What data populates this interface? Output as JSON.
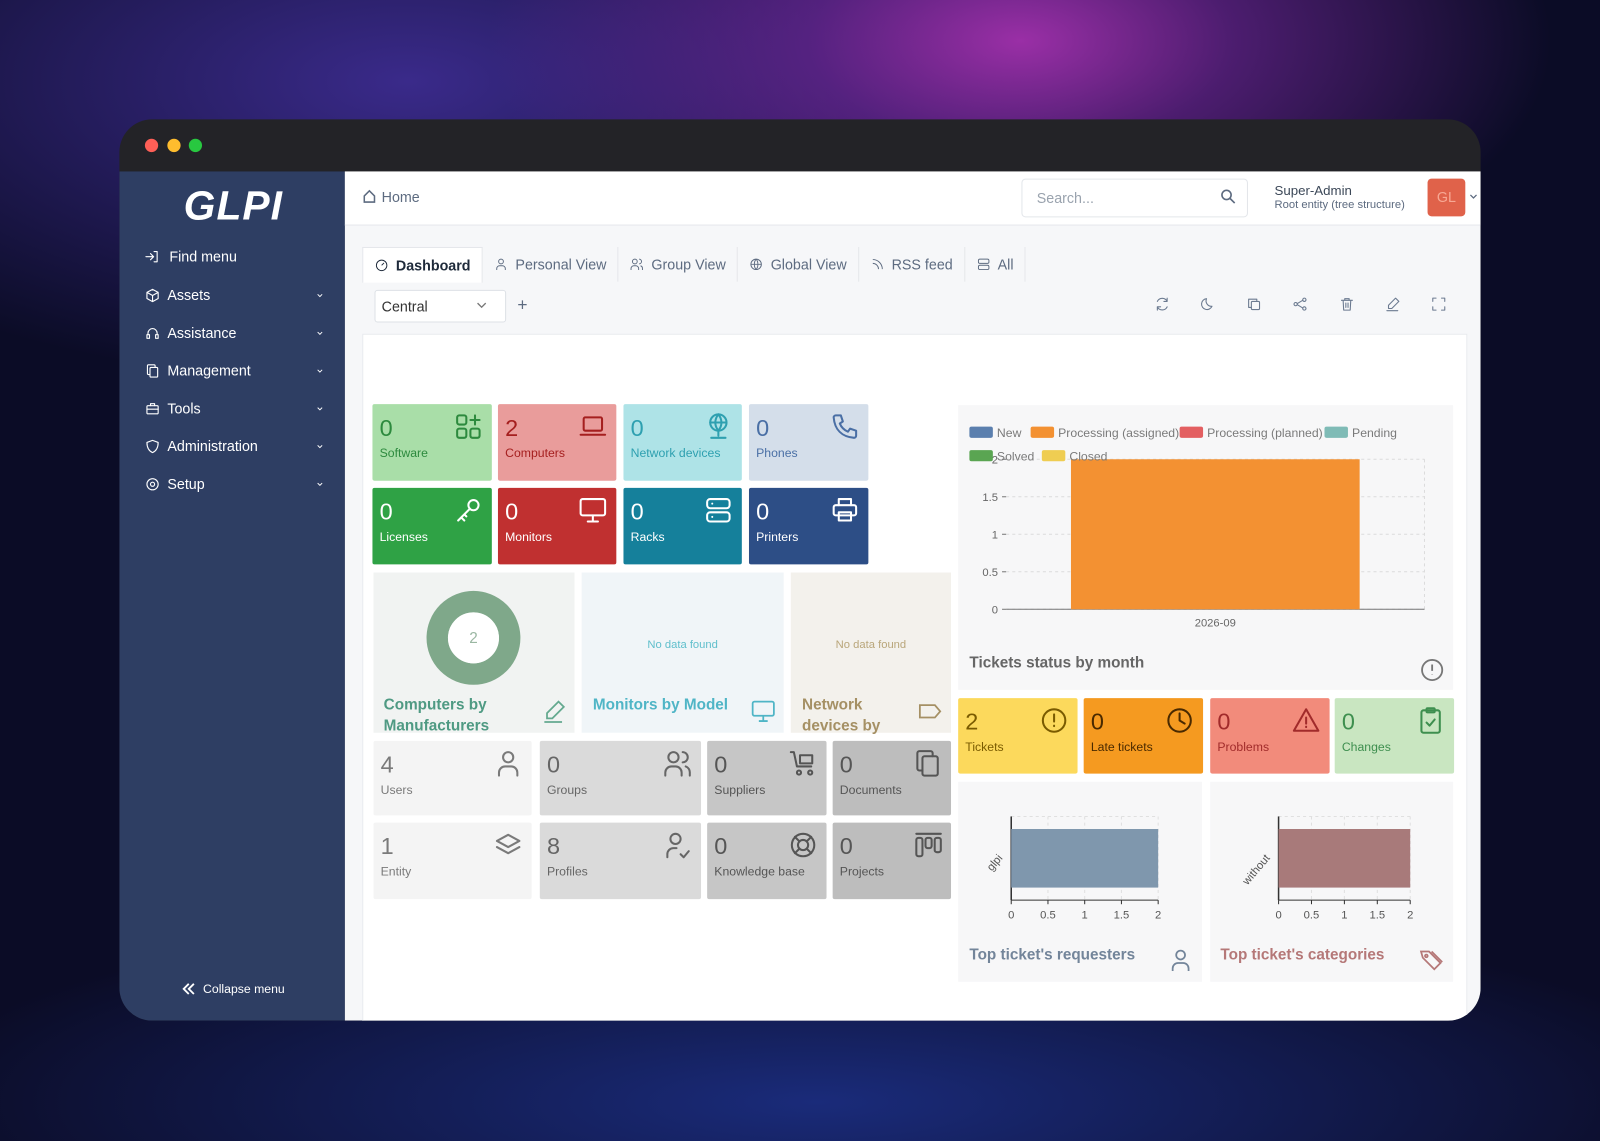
{
  "sidebar": {
    "logo": "GLPI",
    "menu": [
      "Find menu",
      "Assets",
      "Assistance",
      "Management",
      "Tools",
      "Administration",
      "Setup"
    ],
    "collapse": "Collapse menu"
  },
  "header": {
    "breadcrumb": "Home",
    "search_placeholder": "Search...",
    "user": "Super-Admin",
    "entity": "Root entity (tree structure)",
    "avatar": "GL"
  },
  "tabs": [
    "Dashboard",
    "Personal View",
    "Group View",
    "Global View",
    "RSS feed",
    "All"
  ],
  "dashboard": {
    "selector": "Central",
    "add": "+"
  },
  "asset_cards": [
    {
      "value": 0,
      "label": "Software"
    },
    {
      "value": 2,
      "label": "Computers"
    },
    {
      "value": 0,
      "label": "Network devices"
    },
    {
      "value": 0,
      "label": "Phones"
    },
    {
      "value": 0,
      "label": "Licenses"
    },
    {
      "value": 0,
      "label": "Monitors"
    },
    {
      "value": 0,
      "label": "Racks"
    },
    {
      "value": 0,
      "label": "Printers"
    }
  ],
  "pie_widget": {
    "type": "pie",
    "title": "Computers by Manufacturers",
    "values": [
      2
    ],
    "color": "#7fa88a"
  },
  "empty_widgets": [
    {
      "message": "No data found",
      "title": "Monitors by Model"
    },
    {
      "message": "No data found",
      "title": "Network devices by"
    }
  ],
  "admin_cards": [
    {
      "value": 4,
      "label": "Users"
    },
    {
      "value": 0,
      "label": "Groups"
    },
    {
      "value": 0,
      "label": "Suppliers"
    },
    {
      "value": 0,
      "label": "Documents"
    },
    {
      "value": 1,
      "label": "Entity"
    },
    {
      "value": 8,
      "label": "Profiles"
    },
    {
      "value": 0,
      "label": "Knowledge base"
    },
    {
      "value": 0,
      "label": "Projects"
    }
  ],
  "tickets_chart": {
    "type": "bar",
    "title": "Tickets status by month",
    "categories": [
      "2026-09"
    ],
    "series": [
      {
        "name": "New",
        "color": "#5b7fae",
        "values": [
          0
        ]
      },
      {
        "name": "Processing (assigned)",
        "color": "#f39132",
        "values": [
          2
        ]
      },
      {
        "name": "Processing (planned)",
        "color": "#e35f61",
        "values": [
          0
        ]
      },
      {
        "name": "Pending",
        "color": "#7fbbb6",
        "values": [
          0
        ]
      },
      {
        "name": "Solved",
        "color": "#5aa552",
        "values": [
          0
        ]
      },
      {
        "name": "Closed",
        "color": "#efcd52",
        "values": [
          0
        ]
      }
    ],
    "ylim": [
      0,
      2
    ],
    "yticks": [
      0,
      0.5,
      1,
      1.5,
      2
    ],
    "grid": true
  },
  "ticket_cards": [
    {
      "value": 2,
      "label": "Tickets"
    },
    {
      "value": 0,
      "label": "Late tickets"
    },
    {
      "value": 0,
      "label": "Problems"
    },
    {
      "value": 0,
      "label": "Changes"
    }
  ],
  "requesters_chart": {
    "type": "hbar",
    "title": "Top ticket's requesters",
    "categories": [
      "glpi"
    ],
    "values": [
      2
    ],
    "color": "#7f97ad",
    "xlim": [
      0,
      2
    ],
    "xticks": [
      0,
      0.5,
      1,
      1.5,
      2
    ]
  },
  "categories_chart": {
    "type": "hbar",
    "title": "Top ticket's categories",
    "categories": [
      "without"
    ],
    "values": [
      2
    ],
    "color": "#a87a7a",
    "xlim": [
      0,
      2
    ],
    "xticks": [
      0,
      0.5,
      1,
      1.5,
      2
    ]
  }
}
